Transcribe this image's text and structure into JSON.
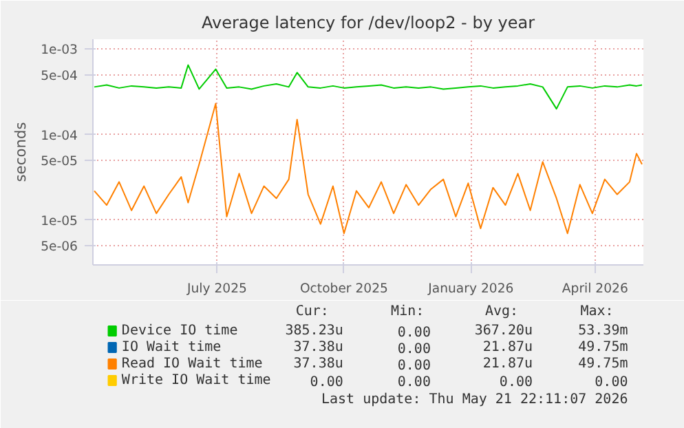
{
  "chart_data": {
    "type": "line",
    "title": "Average latency for /dev/loop2 - by year",
    "ylabel": "seconds",
    "log": "y",
    "grid": true,
    "legend": "bottom",
    "marker": "none",
    "line_style": "solid",
    "x": [
      "2025-04-03",
      "2025-04-12",
      "2025-04-21",
      "2025-04-30",
      "2025-05-09",
      "2025-05-18",
      "2025-05-27",
      "2025-06-05",
      "2025-06-10",
      "2025-06-18",
      "2025-06-30",
      "2025-07-08",
      "2025-07-17",
      "2025-07-26",
      "2025-08-04",
      "2025-08-13",
      "2025-08-22",
      "2025-08-28",
      "2025-09-05",
      "2025-09-14",
      "2025-09-23",
      "2025-10-01",
      "2025-10-10",
      "2025-10-19",
      "2025-10-28",
      "2025-11-06",
      "2025-11-15",
      "2025-11-24",
      "2025-12-03",
      "2025-12-12",
      "2025-12-21",
      "2025-12-30",
      "2026-01-08",
      "2026-01-17",
      "2026-01-26",
      "2026-02-04",
      "2026-02-13",
      "2026-02-22",
      "2026-03-04",
      "2026-03-12",
      "2026-03-21",
      "2026-03-30",
      "2026-04-08",
      "2026-04-17",
      "2026-04-26",
      "2026-05-01",
      "2026-05-05"
    ],
    "xlim": [
      "2025-04-02",
      "2026-05-06"
    ],
    "xticks": [
      {
        "value": "2025-07-01",
        "label": "July 2025"
      },
      {
        "value": "2025-10-01",
        "label": "October 2025"
      },
      {
        "value": "2026-01-01",
        "label": "January 2026"
      },
      {
        "value": "2026-04-01",
        "label": "April 2026"
      }
    ],
    "ylim": [
      3e-06,
      0.0013
    ],
    "yticks": [
      {
        "value": 0.001,
        "label": "1e-03"
      },
      {
        "value": 0.0005,
        "label": "5e-04"
      },
      {
        "value": 0.0001,
        "label": "1e-04"
      },
      {
        "value": 5e-05,
        "label": "5e-05"
      },
      {
        "value": 1e-05,
        "label": "1e-05"
      },
      {
        "value": 5e-06,
        "label": "5e-06"
      }
    ],
    "series": [
      {
        "name": "Device IO time",
        "color": "#00cc00",
        "values": [
          0.00036,
          0.00038,
          0.00035,
          0.00037,
          0.00036,
          0.00035,
          0.00036,
          0.00035,
          0.00065,
          0.00034,
          0.00058,
          0.00035,
          0.00036,
          0.00034,
          0.00037,
          0.00039,
          0.00036,
          0.00053,
          0.00036,
          0.00035,
          0.00037,
          0.00035,
          0.00036,
          0.00037,
          0.00038,
          0.00035,
          0.00036,
          0.00035,
          0.00036,
          0.00034,
          0.00035,
          0.00036,
          0.00037,
          0.00035,
          0.00036,
          0.00037,
          0.00039,
          0.00036,
          0.0002,
          0.00036,
          0.00037,
          0.00035,
          0.00037,
          0.00036,
          0.00038,
          0.00037,
          0.00038
        ]
      },
      {
        "name": "IO Wait time",
        "color": "#0066b3",
        "values": [
          null,
          null,
          null,
          null,
          null,
          null,
          null,
          null,
          null,
          null,
          null,
          null,
          null,
          null,
          null,
          null,
          null,
          null,
          null,
          null,
          null,
          null,
          null,
          null,
          null,
          null,
          null,
          null,
          null,
          null,
          null,
          null,
          null,
          null,
          null,
          null,
          null,
          null,
          null,
          null,
          null,
          null,
          null,
          null,
          null,
          null,
          null
        ]
      },
      {
        "name": "Read IO Wait time",
        "color": "#ff8000",
        "values": [
          2.2e-05,
          1.5e-05,
          2.8e-05,
          1.3e-05,
          2.5e-05,
          1.2e-05,
          2e-05,
          3.2e-05,
          1.6e-05,
          4.5e-05,
          0.00023,
          1.1e-05,
          3.5e-05,
          1.2e-05,
          2.5e-05,
          1.8e-05,
          3e-05,
          0.00015,
          2e-05,
          9e-06,
          2.5e-05,
          7e-06,
          2.2e-05,
          1.4e-05,
          2.8e-05,
          1.2e-05,
          2.6e-05,
          1.5e-05,
          2.3e-05,
          3e-05,
          1.1e-05,
          2.7e-05,
          8e-06,
          2.4e-05,
          1.5e-05,
          3.5e-05,
          1.3e-05,
          4.8e-05,
          1.8e-05,
          7e-06,
          2.6e-05,
          1.2e-05,
          3e-05,
          2e-05,
          2.8e-05,
          6e-05,
          4.5e-05
        ]
      },
      {
        "name": "Write IO Wait time",
        "color": "#ffcc00",
        "values": [
          null,
          null,
          null,
          null,
          null,
          null,
          null,
          null,
          null,
          null,
          null,
          null,
          null,
          null,
          null,
          null,
          null,
          null,
          null,
          null,
          null,
          null,
          null,
          null,
          null,
          null,
          null,
          null,
          null,
          null,
          null,
          null,
          null,
          null,
          null,
          null,
          null,
          null,
          null,
          null,
          null,
          null,
          null,
          null,
          null,
          null,
          null
        ]
      }
    ],
    "annotations": [
      "Cur:",
      "Min:",
      "Avg:",
      "Max:",
      "385.23u",
      "0.00",
      "367.20u",
      "53.39m",
      "37.38u",
      "0.00",
      "21.87u",
      "49.75m",
      "37.38u",
      "0.00",
      "21.87u",
      "49.75m",
      "0.00",
      "0.00",
      "0.00",
      "0.00",
      "Last update: Thu May 21 22:11:07 2026"
    ]
  }
}
